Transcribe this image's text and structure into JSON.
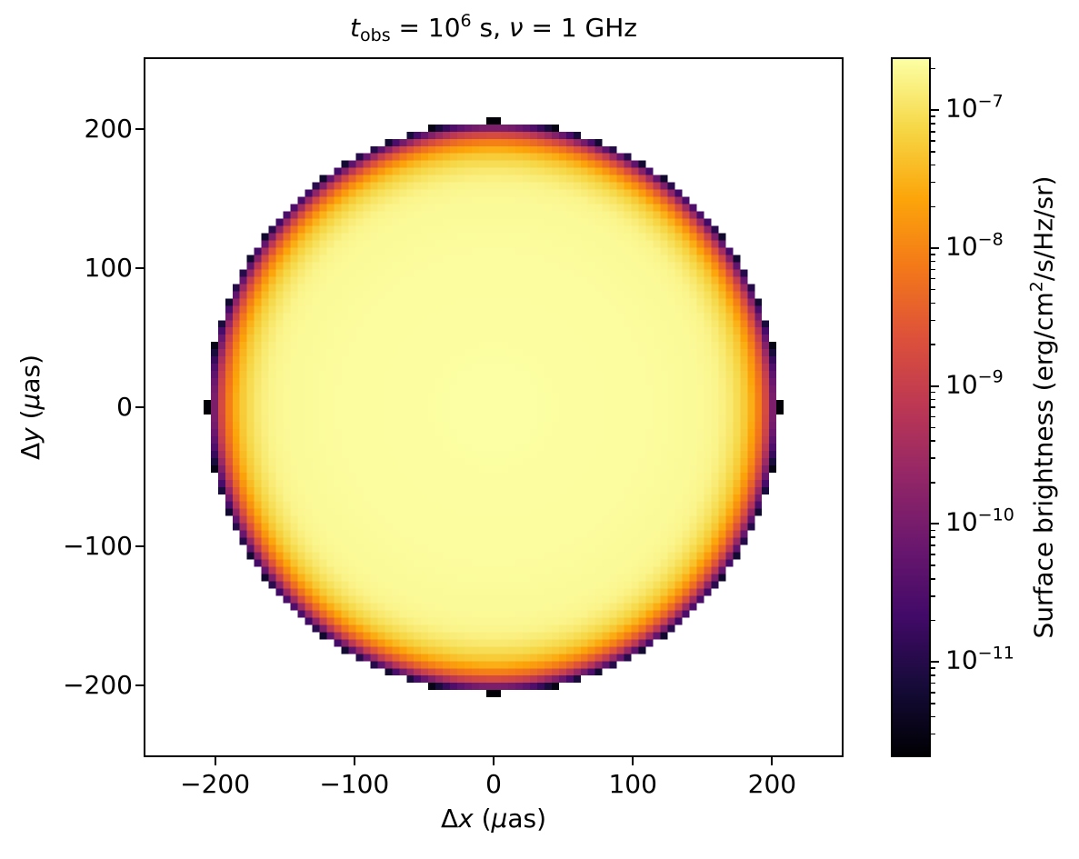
{
  "chart_data": {
    "type": "heatmap",
    "title": "t_obs = 10⁶ s, ν = 1 GHz",
    "title_parts": [
      {
        "t": "t",
        "s": "i"
      },
      {
        "t": "obs",
        "s": "sub"
      },
      {
        "t": " = 10"
      },
      {
        "t": "6",
        "s": "sup"
      },
      {
        "t": " s, "
      },
      {
        "t": "ν",
        "s": "i"
      },
      {
        "t": " = 1 GHz"
      }
    ],
    "xlabel": "Δx (μas)",
    "xlabel_parts": [
      {
        "t": "Δ"
      },
      {
        "t": "x",
        "s": "i"
      },
      {
        "t": " ("
      },
      {
        "t": "μ",
        "s": "i"
      },
      {
        "t": "as)"
      }
    ],
    "ylabel": "Δy (μas)",
    "ylabel_parts": [
      {
        "t": "Δ"
      },
      {
        "t": "y",
        "s": "i"
      },
      {
        "t": " ("
      },
      {
        "t": "μ",
        "s": "i"
      },
      {
        "t": "as)"
      }
    ],
    "xlim": [
      -250,
      250
    ],
    "ylim": [
      -250,
      250
    ],
    "xticks": {
      "values": [
        -200,
        -100,
        0,
        100,
        200
      ],
      "labels": [
        "−200",
        "−100",
        "0",
        "100",
        "200"
      ]
    },
    "yticks": {
      "values": [
        -200,
        -100,
        0,
        100,
        200
      ],
      "labels": [
        "−200",
        "−100",
        "0",
        "100",
        "200"
      ]
    },
    "grid": false,
    "colorbar": {
      "label": "Surface brightness (erg/cm²/s/Hz/sr)",
      "label_parts": [
        {
          "t": "Surface brightness (erg/cm"
        },
        {
          "t": "2",
          "s": "sup"
        },
        {
          "t": "/s/Hz/sr)"
        }
      ],
      "scale": "log",
      "vmin": 2.1e-12,
      "vmax": 2.35e-07,
      "major_ticks": [
        {
          "value": 1e-07,
          "label": "10⁻⁷",
          "parts": [
            {
              "t": "10"
            },
            {
              "t": "−7",
              "s": "sup"
            }
          ]
        },
        {
          "value": 1e-08,
          "label": "10⁻⁸",
          "parts": [
            {
              "t": "10"
            },
            {
              "t": "−8",
              "s": "sup"
            }
          ]
        },
        {
          "value": 1e-09,
          "label": "10⁻⁹",
          "parts": [
            {
              "t": "10"
            },
            {
              "t": "−9",
              "s": "sup"
            }
          ]
        },
        {
          "value": 1e-10,
          "label": "10⁻¹⁰",
          "parts": [
            {
              "t": "10"
            },
            {
              "t": "−10",
              "s": "sup"
            }
          ]
        },
        {
          "value": 1e-11,
          "label": "10⁻¹¹",
          "parts": [
            {
              "t": "10"
            },
            {
              "t": "−11",
              "s": "sup"
            }
          ]
        }
      ],
      "minor_tick_mantissas": [
        2,
        3,
        4,
        5,
        6,
        7,
        8,
        9
      ]
    },
    "colormap": {
      "name": "inferno",
      "stops": [
        [
          0.0,
          "#000004"
        ],
        [
          0.1,
          "#160b39"
        ],
        [
          0.2,
          "#420a68"
        ],
        [
          0.3,
          "#6a176e"
        ],
        [
          0.4,
          "#932667"
        ],
        [
          0.5,
          "#bc3754"
        ],
        [
          0.6,
          "#dd513a"
        ],
        [
          0.7,
          "#f37819"
        ],
        [
          0.8,
          "#fca50a"
        ],
        [
          0.9,
          "#f6d746"
        ],
        [
          1.0,
          "#fcffa4"
        ]
      ]
    },
    "image": {
      "shape": "circular-disk",
      "disk_radius_uas": 205.8,
      "grid_n": 96,
      "radial_profile": {
        "r_uas": [
          0,
          20,
          45,
          110,
          150,
          162,
          170,
          176,
          181,
          185,
          188,
          191,
          194,
          197,
          199,
          201,
          203,
          204.5,
          205.8
        ],
        "surface_brightness": [
          2.6e-07,
          2.4e-07,
          2.25e-07,
          2.2e-07,
          2e-07,
          1.7e-07,
          1.2e-07,
          8e-08,
          5e-08,
          2.8e-08,
          1.5e-08,
          7e-09,
          2.8e-09,
          9e-10,
          3e-10,
          9e-11,
          2.2e-11,
          6e-12,
          2.2e-12
        ]
      }
    }
  }
}
